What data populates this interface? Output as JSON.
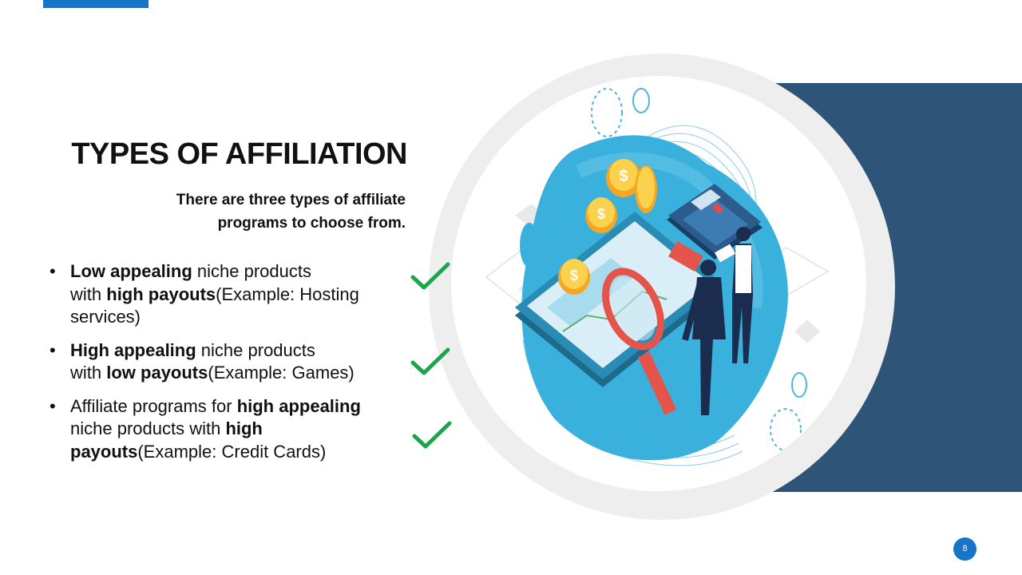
{
  "slide": {
    "title": "TYPES OF AFFILIATION",
    "subtitle_line1": "There are three types of affiliate",
    "subtitle_line2": "programs to choose from.",
    "bullet_glyph": "•",
    "bullets": [
      {
        "b1": "Low appealing",
        "t1": " niche products",
        "t2": "with ",
        "b2": "high payouts",
        "t3": "(Example: Hosting services)"
      },
      {
        "b1": "High appealing",
        "t1": " niche products",
        "t2": "with ",
        "b2": "low payouts",
        "t3": "(Example: Games)"
      },
      {
        "t0": "Affiliate programs for ",
        "b1": "high appealing",
        "t1": " niche products with ",
        "b2": "high payouts",
        "t3": "(Example: Credit Cards)"
      }
    ],
    "page_number": "8"
  },
  "colors": {
    "accent_blue": "#1674c9",
    "panel_navy": "#2e5477",
    "check_green": "#1aa64a",
    "illustration_blue": "#3ab0dc"
  },
  "icons": [
    "checkmark-icon",
    "magnifier-icon",
    "calculator-icon",
    "coin-icon",
    "tablet-icon",
    "businessman-icon",
    "businesswoman-icon"
  ]
}
